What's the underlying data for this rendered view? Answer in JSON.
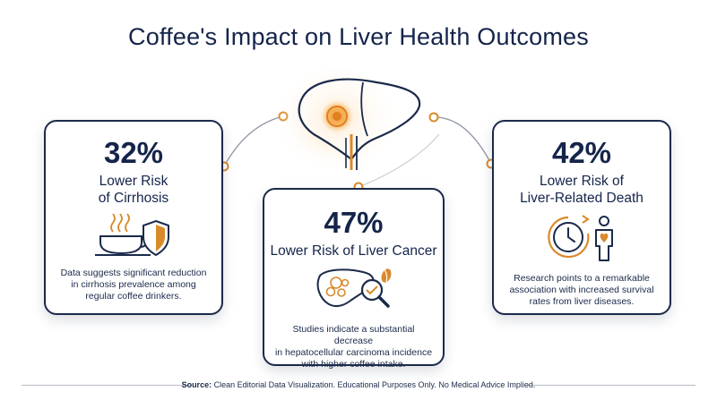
{
  "title": "Coffee's Impact on Liver Health Outcomes",
  "colors": {
    "navy": "#14244a",
    "accent": "#d98a2b",
    "glow": "#f4b45a"
  },
  "cards": {
    "left": {
      "stat": "32%",
      "label_line1": "Lower Risk",
      "label_line2": "of Cirrhosis",
      "desc_line1": "Data suggests significant reduction",
      "desc_line2": "in cirrhosis prevalence among",
      "desc_line3": "regular coffee drinkers.",
      "icon": "coffee-cup-shield-icon"
    },
    "mid": {
      "stat": "47%",
      "label": "Lower Risk of Liver Cancer",
      "desc_line1": "Studies indicate a substantial decrease",
      "desc_line2": "in hepatocellular carcinoma incidence",
      "desc_line3": "with higher coffee intake.",
      "icon": "liver-magnifier-icon"
    },
    "right": {
      "stat": "42%",
      "label_line1": "Lower Risk of",
      "label_line2": "Liver-Related Death",
      "desc_line1": "Research points to a remarkable",
      "desc_line2": "association with increased survival",
      "desc_line3": "rates from liver diseases.",
      "icon": "clock-person-icon"
    }
  },
  "footer": {
    "source_label": "Source:",
    "source_text": " Clean Editorial Data Visualization. Educational Purposes Only. No Medical Advice Implied."
  }
}
